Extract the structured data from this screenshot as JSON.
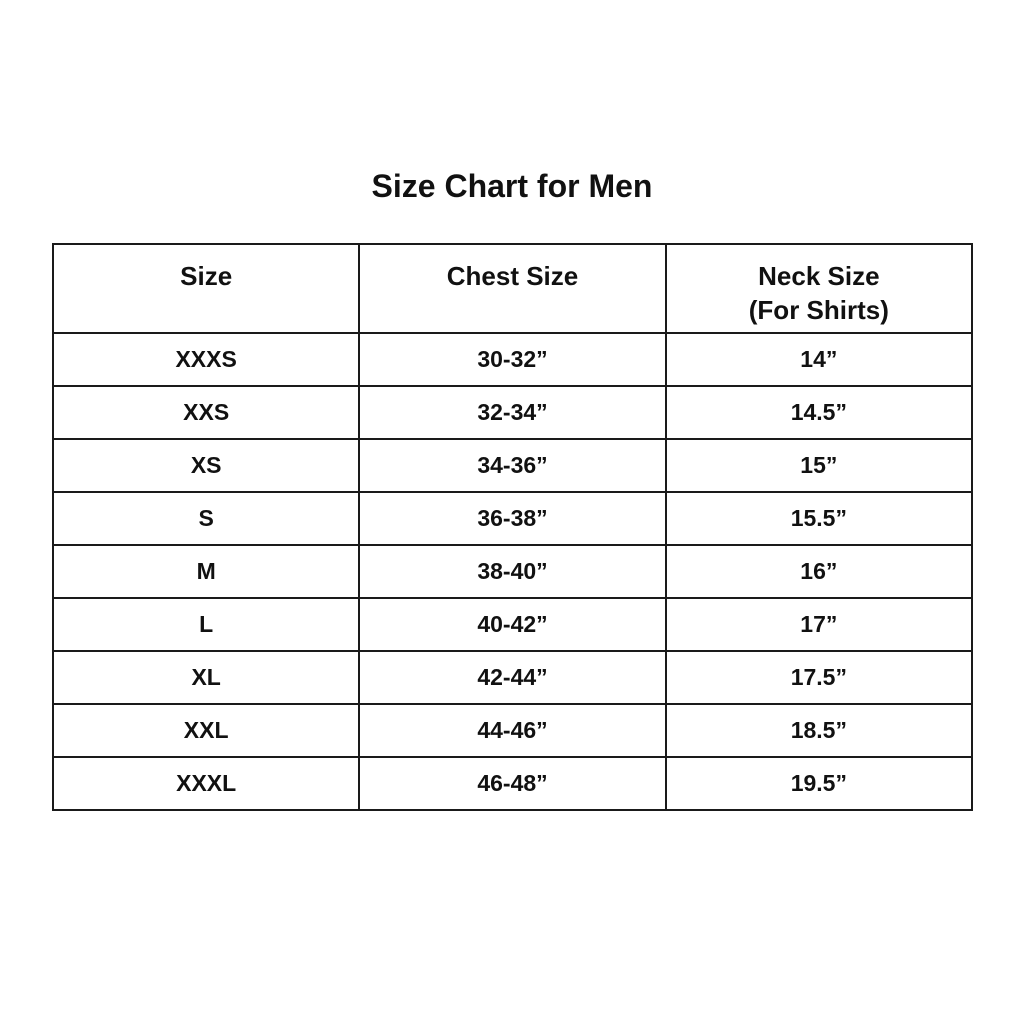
{
  "title": "Size Chart for Men",
  "table": {
    "headers": [
      {
        "line1": "Size",
        "line2": ""
      },
      {
        "line1": "Chest Size",
        "line2": ""
      },
      {
        "line1": "Neck Size",
        "line2": "(For Shirts)"
      }
    ],
    "rows": [
      [
        "XXXS",
        "30-32”",
        "14”"
      ],
      [
        "XXS",
        "32-34”",
        "14.5”"
      ],
      [
        "XS",
        "34-36”",
        "15”"
      ],
      [
        "S",
        "36-38”",
        "15.5”"
      ],
      [
        "M",
        "38-40”",
        "16”"
      ],
      [
        "L",
        "40-42”",
        "17”"
      ],
      [
        "XL",
        "42-44”",
        "17.5”"
      ],
      [
        "XXL",
        "44-46”",
        "18.5”"
      ],
      [
        "XXXL",
        "46-48”",
        "19.5”"
      ]
    ]
  }
}
